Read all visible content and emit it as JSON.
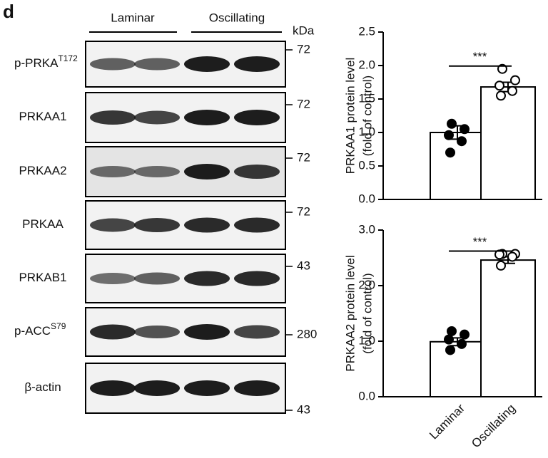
{
  "panel_label": "d",
  "blot": {
    "groups": [
      "Laminar",
      "Oscillating"
    ],
    "unit": "kDa",
    "rows": [
      {
        "label": "p-PRKA",
        "sup": "T172",
        "marker": "72"
      },
      {
        "label": "PRKAA1",
        "marker": "72"
      },
      {
        "label": "PRKAA2",
        "marker": "72"
      },
      {
        "label": "PRKAA",
        "marker": "72"
      },
      {
        "label": "PRKAB1",
        "marker": "43"
      },
      {
        "label": "p-ACC",
        "sup": "S79",
        "marker": "280"
      },
      {
        "label": "β-actin",
        "marker": "43"
      }
    ]
  },
  "chart_data": [
    {
      "type": "bar",
      "y_label": [
        "PRKAA1 protein level",
        "(fold of control)"
      ],
      "categories": [
        null,
        null
      ],
      "values": [
        1.0,
        1.68
      ],
      "errors": [
        0.1,
        0.07
      ],
      "points": [
        [
          1.13,
          1.05,
          0.96,
          0.87,
          0.7
        ],
        [
          1.95,
          1.78,
          1.7,
          1.62,
          1.55
        ]
      ],
      "point_fills": [
        "#000000",
        "#ffffff"
      ],
      "color": "#ffffff",
      "ylim": [
        0,
        2.5
      ],
      "yticks": [
        {
          "value": 0,
          "label": "0.0"
        },
        {
          "value": 0.5,
          "label": "0.5"
        },
        {
          "value": 1,
          "label": "1.0"
        },
        {
          "value": 1.5,
          "label": "1.5"
        },
        {
          "value": 2,
          "label": "2.0"
        },
        {
          "value": 2.5,
          "label": "2.5"
        }
      ],
      "annotation": "***"
    },
    {
      "type": "bar",
      "y_label": [
        "PRKAA2 protein level",
        "(fold of control)"
      ],
      "categories": [
        "Laminar",
        "Oscillating"
      ],
      "values": [
        0.99,
        2.46
      ],
      "errors": [
        0.07,
        0.06
      ],
      "points": [
        [
          1.18,
          1.12,
          1.03,
          0.95,
          0.84
        ],
        [
          2.57,
          2.57,
          2.56,
          2.52,
          2.36
        ]
      ],
      "point_fills": [
        "#000000",
        "#ffffff"
      ],
      "color": "#ffffff",
      "ylim": [
        0,
        3
      ],
      "yticks": [
        {
          "value": 0,
          "label": "0.0"
        },
        {
          "value": 1,
          "label": "1.0"
        },
        {
          "value": 2,
          "label": "2.0"
        },
        {
          "value": 3,
          "label": "3.0"
        }
      ],
      "annotation": "***"
    }
  ]
}
